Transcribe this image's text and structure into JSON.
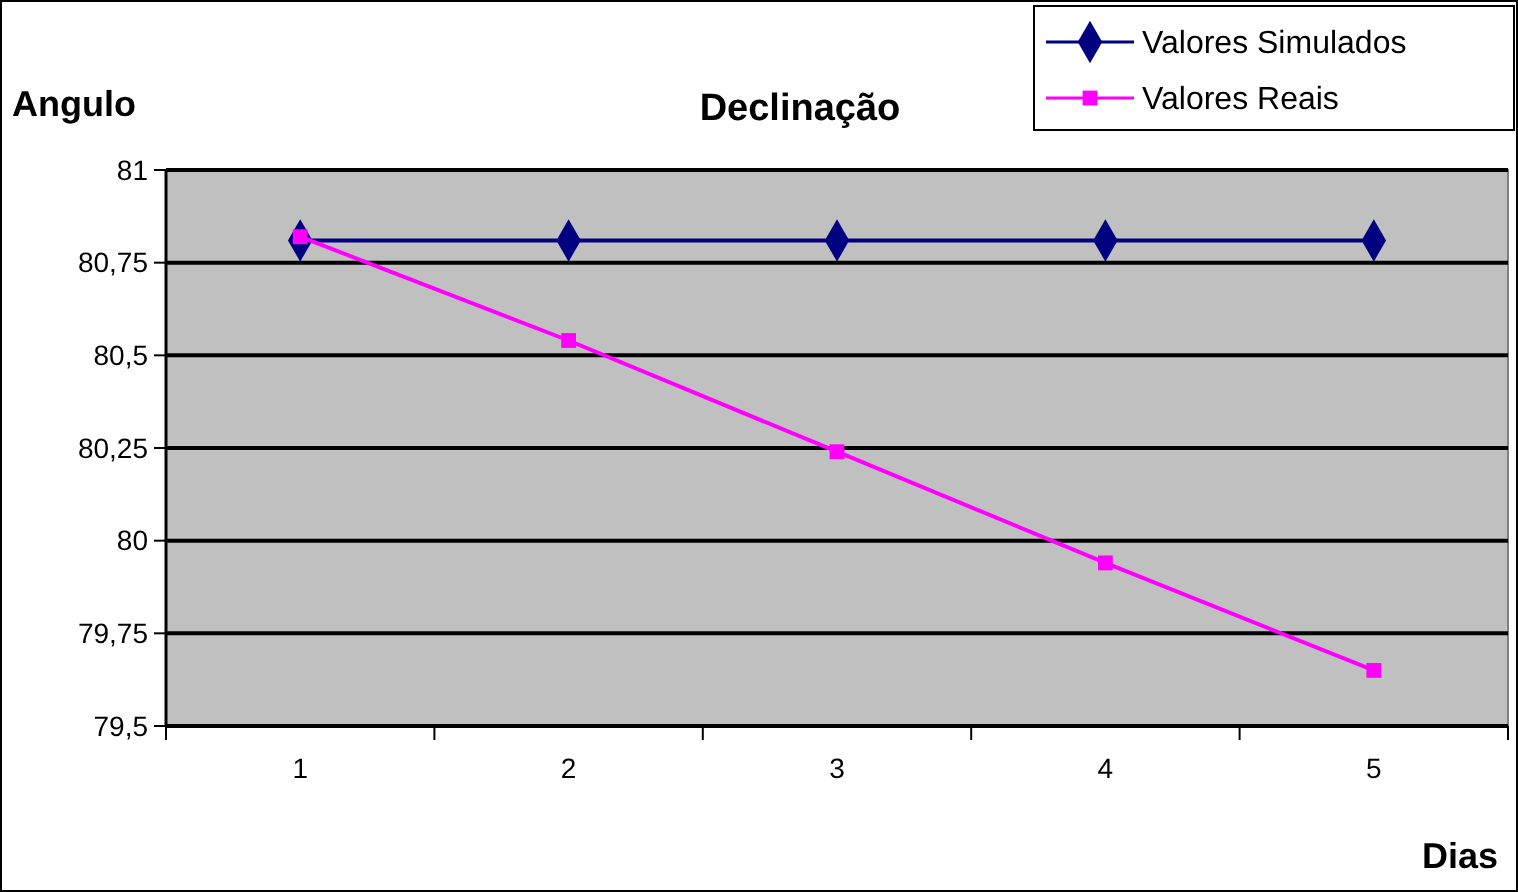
{
  "chart_data": {
    "type": "line",
    "title": "Declinação",
    "xlabel": "Dias",
    "ylabel": "Angulo",
    "categories": [
      "1",
      "2",
      "3",
      "4",
      "5"
    ],
    "series": [
      {
        "name": "Valores Simulados",
        "color": "#000080",
        "marker": "diamond",
        "values": [
          80.81,
          80.81,
          80.81,
          80.81,
          80.81
        ]
      },
      {
        "name": "Valores Reais",
        "color": "#ff00ff",
        "marker": "square",
        "values": [
          80.82,
          80.54,
          80.24,
          79.94,
          79.65
        ]
      }
    ],
    "ylim": [
      79.5,
      81
    ],
    "yticks": [
      {
        "value": 79.5,
        "label": "79,5"
      },
      {
        "value": 79.75,
        "label": "79,75"
      },
      {
        "value": 80,
        "label": "80"
      },
      {
        "value": 80.25,
        "label": "80,25"
      },
      {
        "value": 80.5,
        "label": "80,5"
      },
      {
        "value": 80.75,
        "label": "80,75"
      },
      {
        "value": 81,
        "label": "81"
      }
    ],
    "grid": "y",
    "legend": "top right"
  }
}
